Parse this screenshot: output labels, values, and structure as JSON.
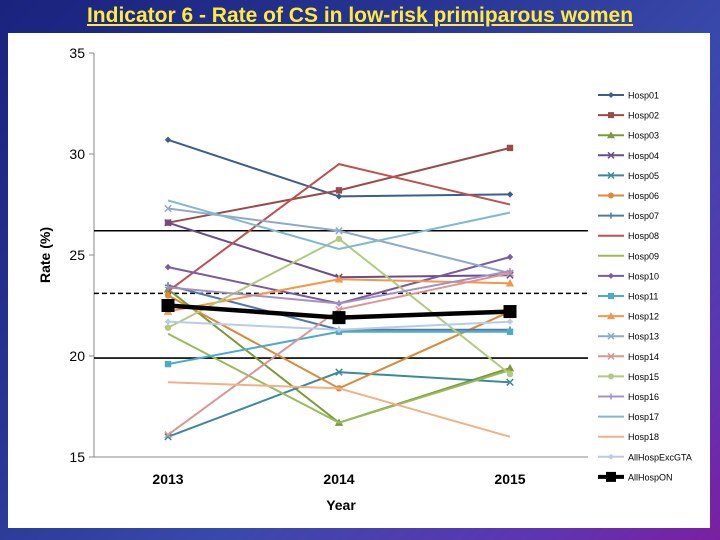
{
  "slide": {
    "title": "Indicator 6 - Rate of CS in low-risk primiparous women"
  },
  "chart_data": {
    "type": "line",
    "title": "",
    "xlabel": "Year",
    "ylabel": "Rate (%)",
    "categories": [
      "2013",
      "2014",
      "2015"
    ],
    "ylim": [
      15,
      35
    ],
    "yticks": [
      15,
      20,
      25,
      30,
      35
    ],
    "grid": false,
    "legend_position": "right",
    "reference_lines": [
      {
        "value": 26.2,
        "style": "solid"
      },
      {
        "value": 23.1,
        "style": "dashed"
      },
      {
        "value": 19.9,
        "style": "solid"
      }
    ],
    "series": [
      {
        "name": "Hosp01",
        "values": [
          30.7,
          27.9,
          28.0
        ],
        "color": "#3a5f8a",
        "marker": "diamond"
      },
      {
        "name": "Hosp02",
        "values": [
          26.6,
          28.2,
          30.3
        ],
        "color": "#9b4a4a",
        "marker": "square"
      },
      {
        "name": "Hosp03",
        "values": [
          23.3,
          16.7,
          19.4
        ],
        "color": "#7c9a3a",
        "marker": "triangle"
      },
      {
        "name": "Hosp04",
        "values": [
          26.6,
          23.9,
          24.0
        ],
        "color": "#6a4c8c",
        "marker": "x"
      },
      {
        "name": "Hosp05",
        "values": [
          16.0,
          19.2,
          18.7
        ],
        "color": "#3a8a9a",
        "marker": "x"
      },
      {
        "name": "Hosp06",
        "values": [
          23.0,
          18.4,
          22.2
        ],
        "color": "#d98a3a",
        "marker": "circle"
      },
      {
        "name": "Hosp07",
        "values": [
          23.5,
          21.3,
          21.3
        ],
        "color": "#4f7aa8",
        "marker": "plus"
      },
      {
        "name": "Hosp08",
        "values": [
          23.2,
          29.5,
          27.5
        ],
        "color": "#c0504d",
        "marker": "none"
      },
      {
        "name": "Hosp09",
        "values": [
          21.1,
          16.7,
          19.3
        ],
        "color": "#9bbb59",
        "marker": "none"
      },
      {
        "name": "Hosp10",
        "values": [
          24.4,
          22.6,
          24.9
        ],
        "color": "#7a5aa0",
        "marker": "diamond"
      },
      {
        "name": "Hosp11",
        "values": [
          19.6,
          21.2,
          21.2
        ],
        "color": "#4bacc6",
        "marker": "square"
      },
      {
        "name": "Hosp12",
        "values": [
          22.2,
          23.8,
          23.6
        ],
        "color": "#f79646",
        "marker": "triangle"
      },
      {
        "name": "Hosp13",
        "values": [
          27.3,
          26.2,
          24.1
        ],
        "color": "#8eaac8",
        "marker": "x"
      },
      {
        "name": "Hosp14",
        "values": [
          16.1,
          22.3,
          24.1
        ],
        "color": "#d99694",
        "marker": "x"
      },
      {
        "name": "Hosp15",
        "values": [
          21.4,
          25.8,
          19.1
        ],
        "color": "#b3ca7e",
        "marker": "circle"
      },
      {
        "name": "Hosp16",
        "values": [
          23.4,
          22.6,
          24.2
        ],
        "color": "#a590c2",
        "marker": "plus"
      },
      {
        "name": "Hosp17",
        "values": [
          27.7,
          25.3,
          27.1
        ],
        "color": "#7fb9d0",
        "marker": "none"
      },
      {
        "name": "Hosp18",
        "values": [
          18.7,
          18.4,
          16.0
        ],
        "color": "#f2b084",
        "marker": "none"
      },
      {
        "name": "AllHospExcGTA",
        "values": [
          21.7,
          21.3,
          21.7
        ],
        "color": "#b8cce4",
        "marker": "diamond"
      },
      {
        "name": "AllHospON",
        "values": [
          22.5,
          21.9,
          22.2
        ],
        "color": "#000000",
        "marker": "square",
        "bold": true
      }
    ]
  }
}
